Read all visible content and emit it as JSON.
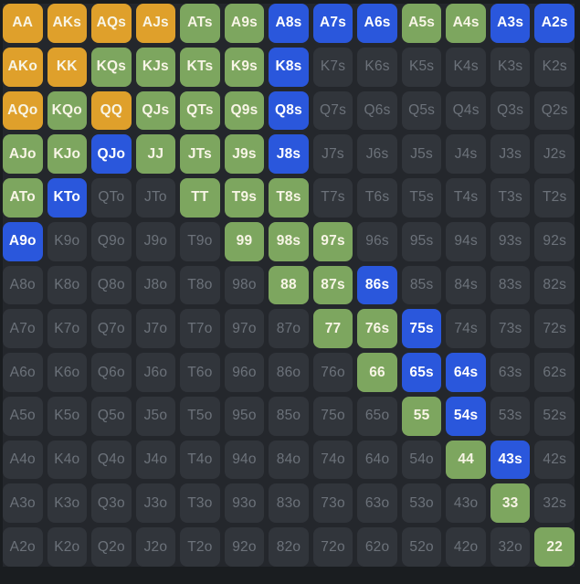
{
  "colors": {
    "orange": "#DFA02B",
    "green": "#7DA65F",
    "blue": "#2A57DC",
    "unselected_cell": "#31353B",
    "grid_background": "#24272C",
    "page_background": "#1A1D20",
    "text_cream": "#F8F5E6",
    "text_white": "#FFFFFF",
    "text_muted": "#6C727A"
  },
  "range_grid": {
    "rows": 13,
    "columns": 13,
    "cells": [
      [
        [
          "AA",
          "orange"
        ],
        [
          "AKs",
          "orange"
        ],
        [
          "AQs",
          "orange"
        ],
        [
          "AJs",
          "orange"
        ],
        [
          "ATs",
          "green"
        ],
        [
          "A9s",
          "green"
        ],
        [
          "A8s",
          "blue"
        ],
        [
          "A7s",
          "blue"
        ],
        [
          "A6s",
          "blue"
        ],
        [
          "A5s",
          "green"
        ],
        [
          "A4s",
          "green"
        ],
        [
          "A3s",
          "blue"
        ],
        [
          "A2s",
          "blue"
        ]
      ],
      [
        [
          "AKo",
          "orange"
        ],
        [
          "KK",
          "orange"
        ],
        [
          "KQs",
          "green"
        ],
        [
          "KJs",
          "green"
        ],
        [
          "KTs",
          "green"
        ],
        [
          "K9s",
          "green"
        ],
        [
          "K8s",
          "blue"
        ],
        [
          "K7s",
          "none"
        ],
        [
          "K6s",
          "none"
        ],
        [
          "K5s",
          "none"
        ],
        [
          "K4s",
          "none"
        ],
        [
          "K3s",
          "none"
        ],
        [
          "K2s",
          "none"
        ]
      ],
      [
        [
          "AQo",
          "orange"
        ],
        [
          "KQo",
          "green"
        ],
        [
          "QQ",
          "orange"
        ],
        [
          "QJs",
          "green"
        ],
        [
          "QTs",
          "green"
        ],
        [
          "Q9s",
          "green"
        ],
        [
          "Q8s",
          "blue"
        ],
        [
          "Q7s",
          "none"
        ],
        [
          "Q6s",
          "none"
        ],
        [
          "Q5s",
          "none"
        ],
        [
          "Q4s",
          "none"
        ],
        [
          "Q3s",
          "none"
        ],
        [
          "Q2s",
          "none"
        ]
      ],
      [
        [
          "AJo",
          "green"
        ],
        [
          "KJo",
          "green"
        ],
        [
          "QJo",
          "blue"
        ],
        [
          "JJ",
          "green"
        ],
        [
          "JTs",
          "green"
        ],
        [
          "J9s",
          "green"
        ],
        [
          "J8s",
          "blue"
        ],
        [
          "J7s",
          "none"
        ],
        [
          "J6s",
          "none"
        ],
        [
          "J5s",
          "none"
        ],
        [
          "J4s",
          "none"
        ],
        [
          "J3s",
          "none"
        ],
        [
          "J2s",
          "none"
        ]
      ],
      [
        [
          "ATo",
          "green"
        ],
        [
          "KTo",
          "blue"
        ],
        [
          "QTo",
          "none"
        ],
        [
          "JTo",
          "none"
        ],
        [
          "TT",
          "green"
        ],
        [
          "T9s",
          "green"
        ],
        [
          "T8s",
          "green"
        ],
        [
          "T7s",
          "none"
        ],
        [
          "T6s",
          "none"
        ],
        [
          "T5s",
          "none"
        ],
        [
          "T4s",
          "none"
        ],
        [
          "T3s",
          "none"
        ],
        [
          "T2s",
          "none"
        ]
      ],
      [
        [
          "A9o",
          "blue"
        ],
        [
          "K9o",
          "none"
        ],
        [
          "Q9o",
          "none"
        ],
        [
          "J9o",
          "none"
        ],
        [
          "T9o",
          "none"
        ],
        [
          "99",
          "green"
        ],
        [
          "98s",
          "green"
        ],
        [
          "97s",
          "green"
        ],
        [
          "96s",
          "none"
        ],
        [
          "95s",
          "none"
        ],
        [
          "94s",
          "none"
        ],
        [
          "93s",
          "none"
        ],
        [
          "92s",
          "none"
        ]
      ],
      [
        [
          "A8o",
          "none"
        ],
        [
          "K8o",
          "none"
        ],
        [
          "Q8o",
          "none"
        ],
        [
          "J8o",
          "none"
        ],
        [
          "T8o",
          "none"
        ],
        [
          "98o",
          "none"
        ],
        [
          "88",
          "green"
        ],
        [
          "87s",
          "green"
        ],
        [
          "86s",
          "blue"
        ],
        [
          "85s",
          "none"
        ],
        [
          "84s",
          "none"
        ],
        [
          "83s",
          "none"
        ],
        [
          "82s",
          "none"
        ]
      ],
      [
        [
          "A7o",
          "none"
        ],
        [
          "K7o",
          "none"
        ],
        [
          "Q7o",
          "none"
        ],
        [
          "J7o",
          "none"
        ],
        [
          "T7o",
          "none"
        ],
        [
          "97o",
          "none"
        ],
        [
          "87o",
          "none"
        ],
        [
          "77",
          "green"
        ],
        [
          "76s",
          "green"
        ],
        [
          "75s",
          "blue"
        ],
        [
          "74s",
          "none"
        ],
        [
          "73s",
          "none"
        ],
        [
          "72s",
          "none"
        ]
      ],
      [
        [
          "A6o",
          "none"
        ],
        [
          "K6o",
          "none"
        ],
        [
          "Q6o",
          "none"
        ],
        [
          "J6o",
          "none"
        ],
        [
          "T6o",
          "none"
        ],
        [
          "96o",
          "none"
        ],
        [
          "86o",
          "none"
        ],
        [
          "76o",
          "none"
        ],
        [
          "66",
          "green"
        ],
        [
          "65s",
          "blue"
        ],
        [
          "64s",
          "blue"
        ],
        [
          "63s",
          "none"
        ],
        [
          "62s",
          "none"
        ]
      ],
      [
        [
          "A5o",
          "none"
        ],
        [
          "K5o",
          "none"
        ],
        [
          "Q5o",
          "none"
        ],
        [
          "J5o",
          "none"
        ],
        [
          "T5o",
          "none"
        ],
        [
          "95o",
          "none"
        ],
        [
          "85o",
          "none"
        ],
        [
          "75o",
          "none"
        ],
        [
          "65o",
          "none"
        ],
        [
          "55",
          "green"
        ],
        [
          "54s",
          "blue"
        ],
        [
          "53s",
          "none"
        ],
        [
          "52s",
          "none"
        ]
      ],
      [
        [
          "A4o",
          "none"
        ],
        [
          "K4o",
          "none"
        ],
        [
          "Q4o",
          "none"
        ],
        [
          "J4o",
          "none"
        ],
        [
          "T4o",
          "none"
        ],
        [
          "94o",
          "none"
        ],
        [
          "84o",
          "none"
        ],
        [
          "74o",
          "none"
        ],
        [
          "64o",
          "none"
        ],
        [
          "54o",
          "none"
        ],
        [
          "44",
          "green"
        ],
        [
          "43s",
          "blue"
        ],
        [
          "42s",
          "none"
        ]
      ],
      [
        [
          "A3o",
          "none"
        ],
        [
          "K3o",
          "none"
        ],
        [
          "Q3o",
          "none"
        ],
        [
          "J3o",
          "none"
        ],
        [
          "T3o",
          "none"
        ],
        [
          "93o",
          "none"
        ],
        [
          "83o",
          "none"
        ],
        [
          "73o",
          "none"
        ],
        [
          "63o",
          "none"
        ],
        [
          "53o",
          "none"
        ],
        [
          "43o",
          "none"
        ],
        [
          "33",
          "green"
        ],
        [
          "32s",
          "none"
        ]
      ],
      [
        [
          "A2o",
          "none"
        ],
        [
          "K2o",
          "none"
        ],
        [
          "Q2o",
          "none"
        ],
        [
          "J2o",
          "none"
        ],
        [
          "T2o",
          "none"
        ],
        [
          "92o",
          "none"
        ],
        [
          "82o",
          "none"
        ],
        [
          "72o",
          "none"
        ],
        [
          "62o",
          "none"
        ],
        [
          "52o",
          "none"
        ],
        [
          "42o",
          "none"
        ],
        [
          "32o",
          "none"
        ],
        [
          "22",
          "green"
        ]
      ]
    ]
  }
}
